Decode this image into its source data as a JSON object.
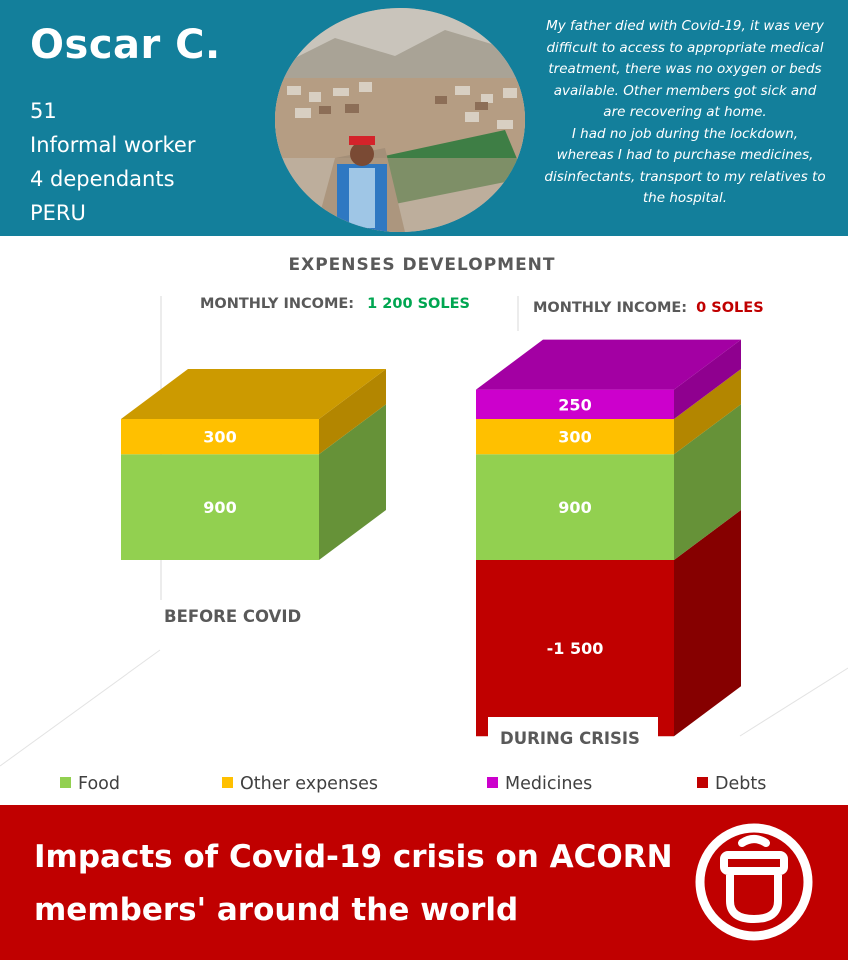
{
  "profile": {
    "name": "Oscar C.",
    "details": [
      "51",
      "Informal worker",
      "4 dependants",
      "PERU"
    ]
  },
  "quote": {
    "lines": [
      "My father died with Covid-19, it was very",
      "difficult to access to appropriate medical",
      "treatment, there was no oxygen or beds",
      "available. Other members got sick and",
      "are recovering at home.",
      "I had no job during the lockdown,",
      "whereas I had to purchase medicines,",
      "disinfectants, transport to my relatives to",
      "the hospital."
    ]
  },
  "colors": {
    "header_bg": "#137f9b",
    "footer_bg": "#c00000",
    "income_positive": "#00a651",
    "income_zero": "#c00000"
  },
  "chart_data": {
    "type": "bar",
    "stacked": true,
    "three_d": true,
    "title": "EXPENSES DEVELOPMENT",
    "categories": [
      "BEFORE COVID",
      "DURING CRISIS"
    ],
    "income": [
      {
        "label": "MONTHLY INCOME:",
        "value": "1 200 SOLES"
      },
      {
        "label": "MONTHLY INCOME:",
        "value": "0 SOLES"
      }
    ],
    "series": [
      {
        "name": "Food",
        "color": "#92d050",
        "values": [
          900,
          900
        ],
        "labels": [
          "900",
          "900"
        ]
      },
      {
        "name": "Other expenses",
        "color": "#ffc000",
        "values": [
          300,
          300
        ],
        "labels": [
          "300",
          "300"
        ]
      },
      {
        "name": "Medicines",
        "color": "#cc00cc",
        "values": [
          0,
          250
        ],
        "labels": [
          "",
          "250"
        ]
      },
      {
        "name": "Debts",
        "color": "#c00000",
        "values": [
          0,
          -1500
        ],
        "labels": [
          "",
          "-1 500"
        ]
      }
    ],
    "legend_position": "bottom",
    "grid": false
  },
  "footer": {
    "title_lines": [
      "Impacts of Covid-19 crisis on ACORN",
      "members' around the world"
    ]
  }
}
